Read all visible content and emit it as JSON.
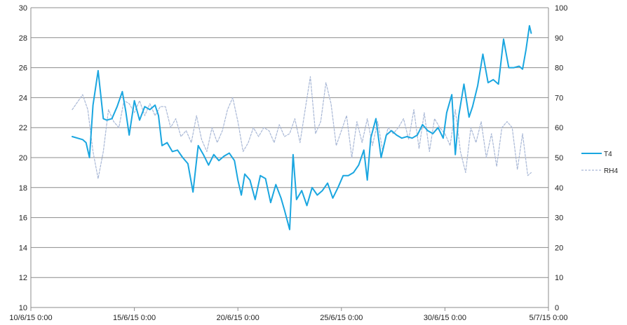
{
  "chart_data": {
    "type": "line",
    "x_axis": {
      "min": "2015-06-10T00:00",
      "max": "2015-07-05T00:00",
      "tick_labels": [
        "10/6/15 0:00",
        "15/6/15 0:00",
        "20/6/15 0:00",
        "25/6/15 0:00",
        "30/6/15 0:00",
        "5/7/15 0:00"
      ]
    },
    "y_left": {
      "min": 10,
      "max": 30,
      "step": 2,
      "tick_labels": [
        "10",
        "12",
        "14",
        "16",
        "18",
        "20",
        "22",
        "24",
        "26",
        "28",
        "30"
      ]
    },
    "y_right": {
      "min": 0,
      "max": 100,
      "step": 10,
      "tick_labels": [
        "0",
        "10",
        "20",
        "30",
        "40",
        "50",
        "60",
        "70",
        "80",
        "90",
        "100"
      ]
    },
    "grid": "horizontal",
    "legend_placement": "right",
    "series": [
      {
        "name": "T4",
        "axis": "left",
        "style": "solid",
        "color": "#1aa6e0",
        "x": [
          "2015-06-12T00:00",
          "2015-06-12T12:00",
          "2015-06-12T16:00",
          "2015-06-12T20:00",
          "2015-06-13T00:00",
          "2015-06-13T06:00",
          "2015-06-13T12:00",
          "2015-06-13T16:00",
          "2015-06-13T22:00",
          "2015-06-14T04:00",
          "2015-06-14T10:00",
          "2015-06-14T14:00",
          "2015-06-14T18:00",
          "2015-06-15T00:00",
          "2015-06-15T06:00",
          "2015-06-15T12:00",
          "2015-06-15T18:00",
          "2015-06-16T00:00",
          "2015-06-16T04:00",
          "2015-06-16T08:00",
          "2015-06-16T14:00",
          "2015-06-16T20:00",
          "2015-06-17T02:00",
          "2015-06-17T08:00",
          "2015-06-17T14:00",
          "2015-06-17T20:00",
          "2015-06-18T02:00",
          "2015-06-18T08:00",
          "2015-06-18T14:00",
          "2015-06-18T20:00",
          "2015-06-19T02:00",
          "2015-06-19T08:00",
          "2015-06-19T14:00",
          "2015-06-19T20:00",
          "2015-06-20T00:00",
          "2015-06-20T04:00",
          "2015-06-20T08:00",
          "2015-06-20T14:00",
          "2015-06-20T20:00",
          "2015-06-21T02:00",
          "2015-06-21T08:00",
          "2015-06-21T14:00",
          "2015-06-21T20:00",
          "2015-06-22T02:00",
          "2015-06-22T06:00",
          "2015-06-22T12:00",
          "2015-06-22T16:00",
          "2015-06-22T20:00",
          "2015-06-23T02:00",
          "2015-06-23T08:00",
          "2015-06-23T14:00",
          "2015-06-23T20:00",
          "2015-06-24T02:00",
          "2015-06-24T08:00",
          "2015-06-24T14:00",
          "2015-06-24T20:00",
          "2015-06-25T02:00",
          "2015-06-25T08:00",
          "2015-06-25T14:00",
          "2015-06-25T20:00",
          "2015-06-26T02:00",
          "2015-06-26T06:00",
          "2015-06-26T10:00",
          "2015-06-26T16:00",
          "2015-06-26T22:00",
          "2015-06-27T04:00",
          "2015-06-27T10:00",
          "2015-06-27T16:00",
          "2015-06-27T22:00",
          "2015-06-28T04:00",
          "2015-06-28T10:00",
          "2015-06-28T16:00",
          "2015-06-28T22:00",
          "2015-06-29T04:00",
          "2015-06-29T10:00",
          "2015-06-29T16:00",
          "2015-06-29T22:00",
          "2015-06-30T02:00",
          "2015-06-30T08:00",
          "2015-06-30T12:00",
          "2015-06-30T16:00",
          "2015-06-30T22:00",
          "2015-07-01T04:00",
          "2015-07-01T08:00",
          "2015-07-01T14:00",
          "2015-07-01T20:00",
          "2015-07-02T02:00",
          "2015-07-02T08:00",
          "2015-07-02T14:00",
          "2015-07-02T20:00",
          "2015-07-03T02:00",
          "2015-07-03T08:00",
          "2015-07-03T14:00",
          "2015-07-03T18:00",
          "2015-07-03T22:00",
          "2015-07-04T02:00",
          "2015-07-04T04:00"
        ],
        "y": [
          21.4,
          21.2,
          21.0,
          20.0,
          23.5,
          25.8,
          22.6,
          22.5,
          22.6,
          23.4,
          24.4,
          23.1,
          21.5,
          23.8,
          22.5,
          23.4,
          23.2,
          23.5,
          22.8,
          20.8,
          21.0,
          20.4,
          20.5,
          20.0,
          19.6,
          17.7,
          20.8,
          20.2,
          19.5,
          20.2,
          19.8,
          20.1,
          20.3,
          19.8,
          18.5,
          17.5,
          18.9,
          18.5,
          17.2,
          18.8,
          18.6,
          17.0,
          18.2,
          17.3,
          16.5,
          15.2,
          20.2,
          17.2,
          17.8,
          16.8,
          18.0,
          17.5,
          17.8,
          18.3,
          17.3,
          18.0,
          18.8,
          18.8,
          19.0,
          19.5,
          20.5,
          18.5,
          21.3,
          22.6,
          20.0,
          21.5,
          21.8,
          21.5,
          21.3,
          21.4,
          21.3,
          21.5,
          22.2,
          21.8,
          21.6,
          22.0,
          21.3,
          23.0,
          24.2,
          20.2,
          22.8,
          24.9,
          22.7,
          23.4,
          24.8,
          26.9,
          25.0,
          25.2,
          24.9,
          27.9,
          26.0,
          26.0,
          26.1,
          25.9,
          27.2,
          28.8,
          28.3
        ]
      },
      {
        "name": "RH4",
        "axis": "right",
        "style": "dashed",
        "color": "#a9b8d6",
        "x": [
          "2015-06-12T00:00",
          "2015-06-12T12:00",
          "2015-06-12T18:00",
          "2015-06-13T00:00",
          "2015-06-13T06:00",
          "2015-06-13T12:00",
          "2015-06-13T18:00",
          "2015-06-14T00:00",
          "2015-06-14T06:00",
          "2015-06-14T12:00",
          "2015-06-14T18:00",
          "2015-06-15T00:00",
          "2015-06-15T06:00",
          "2015-06-15T12:00",
          "2015-06-15T18:00",
          "2015-06-16T00:00",
          "2015-06-16T06:00",
          "2015-06-16T12:00",
          "2015-06-16T18:00",
          "2015-06-17T00:00",
          "2015-06-17T06:00",
          "2015-06-17T12:00",
          "2015-06-17T18:00",
          "2015-06-18T00:00",
          "2015-06-18T06:00",
          "2015-06-18T12:00",
          "2015-06-18T18:00",
          "2015-06-19T00:00",
          "2015-06-19T06:00",
          "2015-06-19T12:00",
          "2015-06-19T18:00",
          "2015-06-20T00:00",
          "2015-06-20T06:00",
          "2015-06-20T12:00",
          "2015-06-20T18:00",
          "2015-06-21T00:00",
          "2015-06-21T06:00",
          "2015-06-21T12:00",
          "2015-06-21T18:00",
          "2015-06-22T00:00",
          "2015-06-22T06:00",
          "2015-06-22T12:00",
          "2015-06-22T18:00",
          "2015-06-23T00:00",
          "2015-06-23T06:00",
          "2015-06-23T12:00",
          "2015-06-23T18:00",
          "2015-06-24T00:00",
          "2015-06-24T06:00",
          "2015-06-24T12:00",
          "2015-06-24T18:00",
          "2015-06-25T00:00",
          "2015-06-25T06:00",
          "2015-06-25T12:00",
          "2015-06-25T18:00",
          "2015-06-26T00:00",
          "2015-06-26T06:00",
          "2015-06-26T12:00",
          "2015-06-26T18:00",
          "2015-06-27T00:00",
          "2015-06-27T06:00",
          "2015-06-27T12:00",
          "2015-06-27T18:00",
          "2015-06-28T00:00",
          "2015-06-28T06:00",
          "2015-06-28T12:00",
          "2015-06-28T18:00",
          "2015-06-29T00:00",
          "2015-06-29T06:00",
          "2015-06-29T12:00",
          "2015-06-29T18:00",
          "2015-06-30T00:00",
          "2015-06-30T06:00",
          "2015-06-30T12:00",
          "2015-06-30T18:00",
          "2015-07-01T00:00",
          "2015-07-01T06:00",
          "2015-07-01T12:00",
          "2015-07-01T18:00",
          "2015-07-02T00:00",
          "2015-07-02T06:00",
          "2015-07-02T12:00",
          "2015-07-02T18:00",
          "2015-07-03T00:00",
          "2015-07-03T06:00",
          "2015-07-03T12:00",
          "2015-07-03T18:00",
          "2015-07-04T00:00",
          "2015-07-04T04:00"
        ],
        "y": [
          66,
          71,
          66,
          52,
          43,
          52,
          66,
          62,
          60,
          69,
          68,
          65,
          69,
          64,
          68,
          64,
          67,
          67,
          60,
          63,
          57,
          59,
          55,
          64,
          56,
          52,
          60,
          55,
          59,
          66,
          70,
          62,
          52,
          55,
          60,
          57,
          60,
          59,
          55,
          61,
          57,
          58,
          63,
          55,
          66,
          77,
          58,
          62,
          75,
          68,
          54,
          59,
          64,
          50,
          62,
          55,
          63,
          54,
          62,
          52,
          60,
          58,
          60,
          63,
          56,
          66,
          53,
          65,
          52,
          63,
          60,
          58,
          54,
          66,
          52,
          45,
          60,
          55,
          62,
          50,
          58,
          47,
          60,
          62,
          60,
          46,
          58,
          44,
          45
        ]
      }
    ]
  }
}
